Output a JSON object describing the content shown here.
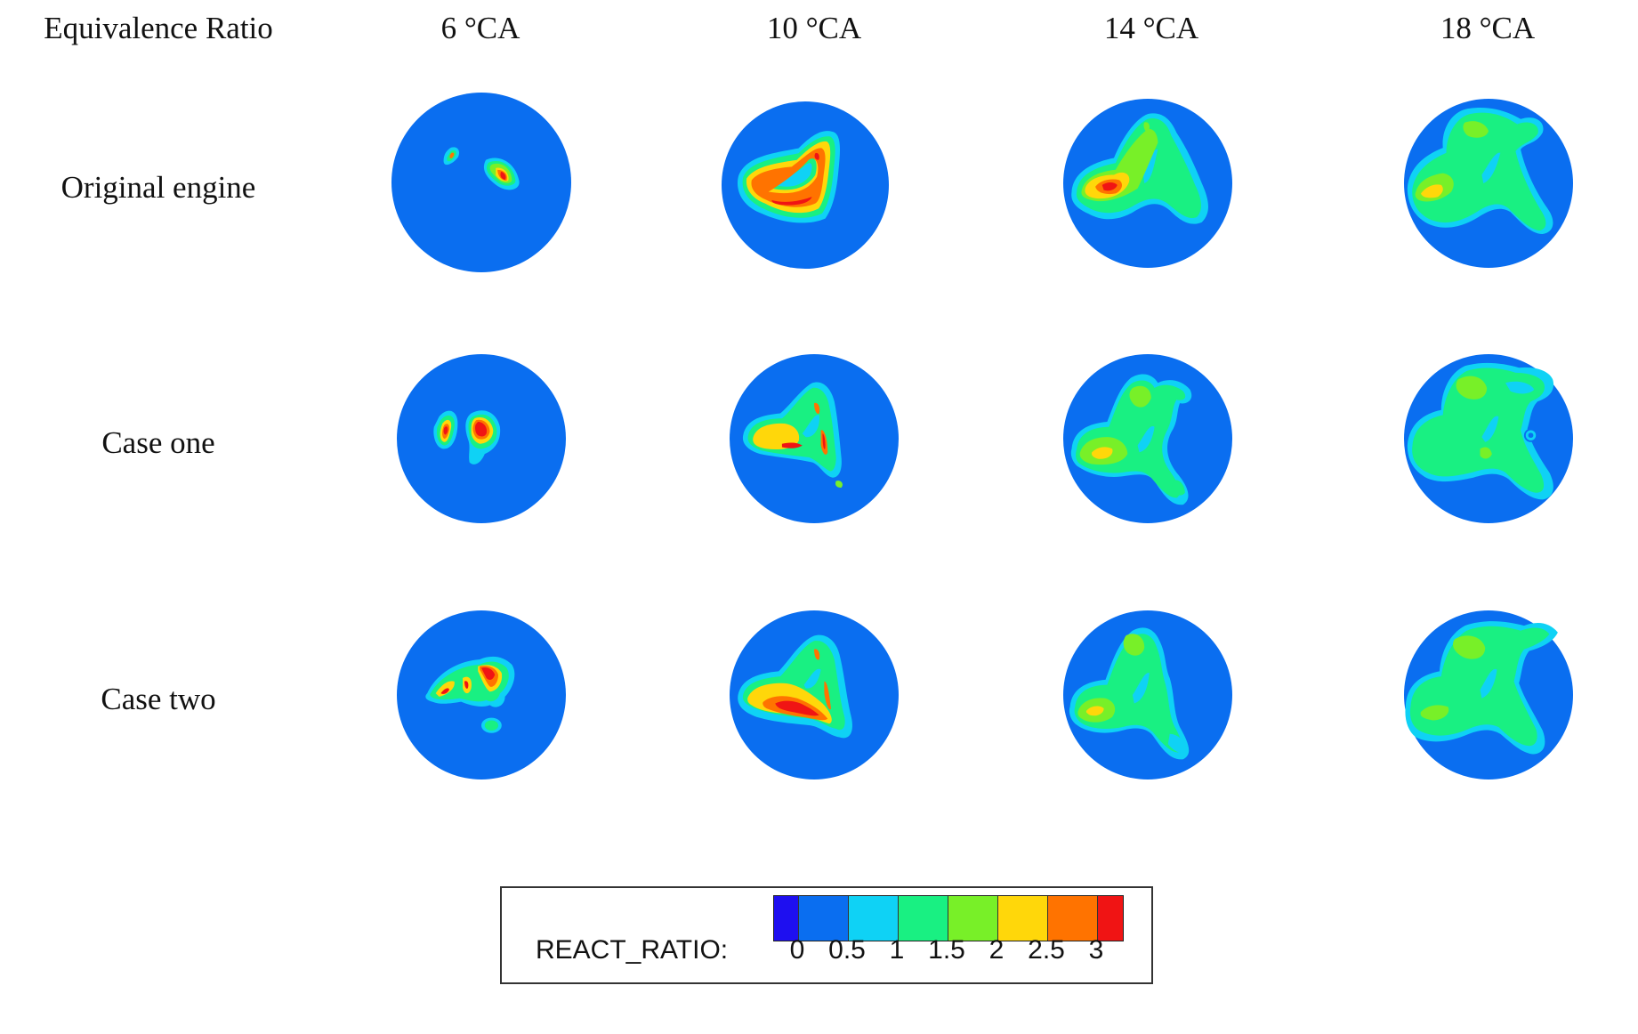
{
  "header": {
    "row_title": "Equivalence Ratio",
    "columns": [
      "6 °CA",
      "10 °CA",
      "14 °CA",
      "18 °CA"
    ]
  },
  "rows": [
    "Original engine",
    "Case one",
    "Case two"
  ],
  "legend": {
    "title": "REACT_RATIO:",
    "ticks": [
      "0",
      "0.5",
      "1",
      "1.5",
      "2",
      "2.5",
      "3"
    ],
    "colors": [
      "#1e0ff0",
      "#0a6ef0",
      "#0fd2f5",
      "#19f082",
      "#78f028",
      "#ffd70a",
      "#ff7300",
      "#f01414"
    ]
  },
  "palette": {
    "background": "#0a6ef0",
    "cyan": "#0fd2f5",
    "green": "#19f082",
    "lime": "#78f028",
    "yellow": "#ffd70a",
    "orange": "#ff7300",
    "red": "#f01414"
  }
}
